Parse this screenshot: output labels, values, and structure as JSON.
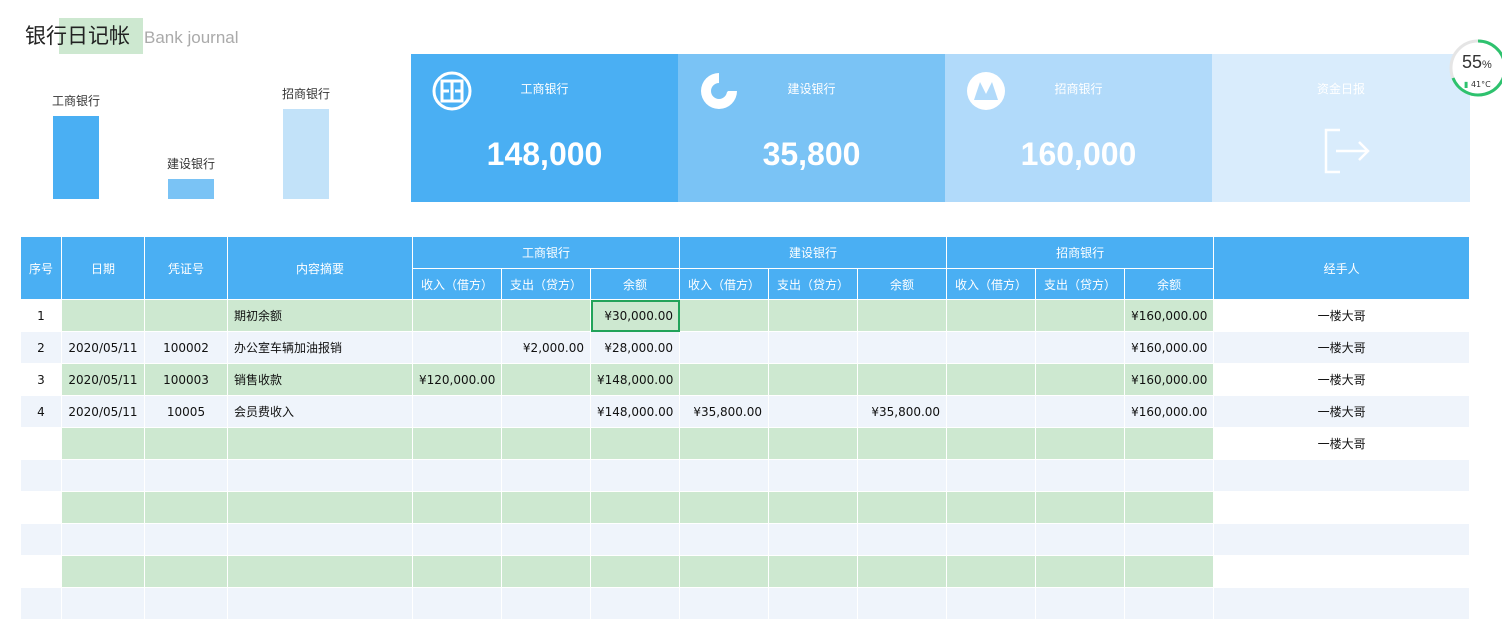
{
  "title": {
    "main": "银行日记帐",
    "sub": "Bank journal"
  },
  "mini_chart": {
    "bars": [
      {
        "label": "工商银行",
        "value": 148000,
        "color": "#4aaff3"
      },
      {
        "label": "建设银行",
        "value": 35800,
        "color": "#7ac3f5"
      },
      {
        "label": "招商银行",
        "value": 160000,
        "color": "#c2e2f9"
      }
    ]
  },
  "cards": [
    {
      "name": "工商银行",
      "value": "148,000",
      "color": "#4aaff3",
      "icon": "icbc-logo-icon"
    },
    {
      "name": "建设银行",
      "value": "35,800",
      "color": "#7ac3f5",
      "icon": "ccb-logo-icon"
    },
    {
      "name": "招商银行",
      "value": "160,000",
      "color": "#b1dafa",
      "icon": "cmb-logo-icon"
    },
    {
      "name": "资金日报",
      "value": "",
      "color": "#d9ecfc",
      "icon": "exit-arrow-icon"
    }
  ],
  "badge": {
    "percent": "55",
    "percent_unit": "%",
    "temp": "41°C"
  },
  "table": {
    "headers": {
      "index": "序号",
      "date": "日期",
      "voucher": "凭证号",
      "summary": "内容摘要",
      "handler": "经手人",
      "banks": [
        "工商银行",
        "建设银行",
        "招商银行"
      ],
      "sub": [
        "收入（借方）",
        "支出（贷方）",
        "余额"
      ]
    },
    "rows": [
      {
        "index": "1",
        "date": "",
        "voucher": "",
        "summary": "期初余额",
        "icbc": [
          "",
          "",
          "¥30,000.00"
        ],
        "ccb": [
          "",
          "",
          ""
        ],
        "cmb": [
          "",
          "",
          "¥160,000.00"
        ],
        "handler": "一楼大哥"
      },
      {
        "index": "2",
        "date": "2020/05/11",
        "voucher": "100002",
        "summary": "办公室车辆加油报销",
        "icbc": [
          "",
          "¥2,000.00",
          "¥28,000.00"
        ],
        "ccb": [
          "",
          "",
          ""
        ],
        "cmb": [
          "",
          "",
          "¥160,000.00"
        ],
        "handler": "一楼大哥"
      },
      {
        "index": "3",
        "date": "2020/05/11",
        "voucher": "100003",
        "summary": "销售收款",
        "icbc": [
          "¥120,000.00",
          "",
          "¥148,000.00"
        ],
        "ccb": [
          "",
          "",
          ""
        ],
        "cmb": [
          "",
          "",
          "¥160,000.00"
        ],
        "handler": "一楼大哥"
      },
      {
        "index": "4",
        "date": "2020/05/11",
        "voucher": "10005",
        "summary": "会员费收入",
        "icbc": [
          "",
          "",
          "¥148,000.00"
        ],
        "ccb": [
          "¥35,800.00",
          "",
          "¥35,800.00"
        ],
        "cmb": [
          "",
          "",
          "¥160,000.00"
        ],
        "handler": "一楼大哥"
      },
      {
        "index": "",
        "date": "",
        "voucher": "",
        "summary": "",
        "icbc": [
          "",
          "",
          ""
        ],
        "ccb": [
          "",
          "",
          ""
        ],
        "cmb": [
          "",
          "",
          ""
        ],
        "handler": "一楼大哥"
      },
      {
        "index": "",
        "date": "",
        "voucher": "",
        "summary": "",
        "icbc": [
          "",
          "",
          ""
        ],
        "ccb": [
          "",
          "",
          ""
        ],
        "cmb": [
          "",
          "",
          ""
        ],
        "handler": ""
      },
      {
        "index": "",
        "date": "",
        "voucher": "",
        "summary": "",
        "icbc": [
          "",
          "",
          ""
        ],
        "ccb": [
          "",
          "",
          ""
        ],
        "cmb": [
          "",
          "",
          ""
        ],
        "handler": ""
      },
      {
        "index": "",
        "date": "",
        "voucher": "",
        "summary": "",
        "icbc": [
          "",
          "",
          ""
        ],
        "ccb": [
          "",
          "",
          ""
        ],
        "cmb": [
          "",
          "",
          ""
        ],
        "handler": ""
      },
      {
        "index": "",
        "date": "",
        "voucher": "",
        "summary": "",
        "icbc": [
          "",
          "",
          ""
        ],
        "ccb": [
          "",
          "",
          ""
        ],
        "cmb": [
          "",
          "",
          ""
        ],
        "handler": ""
      },
      {
        "index": "",
        "date": "",
        "voucher": "",
        "summary": "",
        "icbc": [
          "",
          "",
          ""
        ],
        "ccb": [
          "",
          "",
          ""
        ],
        "cmb": [
          "",
          "",
          ""
        ],
        "handler": ""
      }
    ]
  }
}
